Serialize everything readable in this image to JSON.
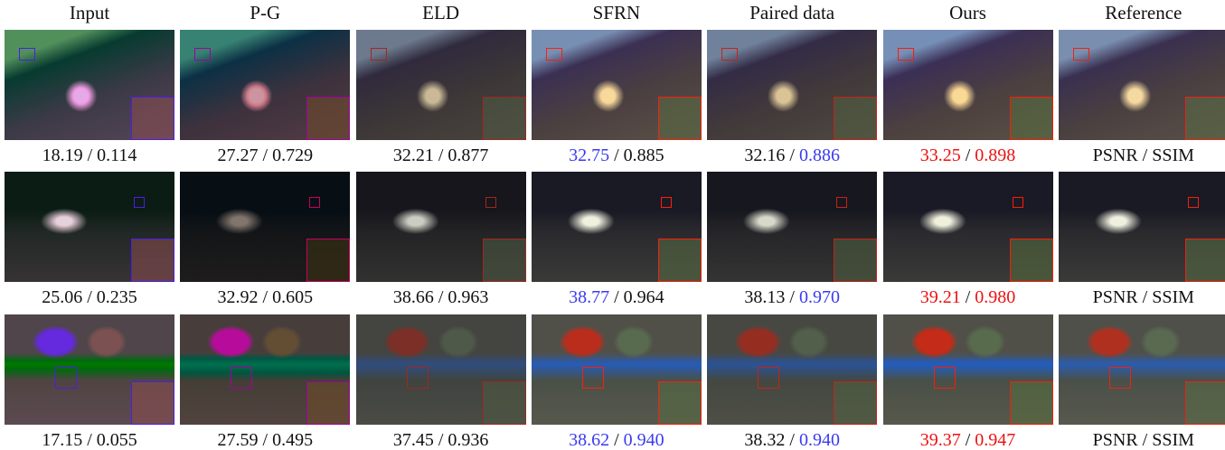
{
  "columns": [
    "Input",
    "P-G",
    "ELD",
    "SFRN",
    "Paired data",
    "Ours",
    "Reference"
  ],
  "separator": "/",
  "rows": [
    {
      "cells": [
        {
          "psnr": "18.19",
          "ssim": "0.114"
        },
        {
          "psnr": "27.27",
          "ssim": "0.729"
        },
        {
          "psnr": "32.21",
          "ssim": "0.877"
        },
        {
          "psnr": "32.75",
          "psnr_color": "#3a3af0",
          "ssim": "0.885"
        },
        {
          "psnr": "32.16",
          "ssim": "0.886",
          "ssim_color": "#3a3af0"
        },
        {
          "psnr": "33.25",
          "psnr_color": "#ee1111",
          "ssim": "0.898",
          "ssim_color": "#ee1111"
        },
        {
          "psnr": "PSNR",
          "ssim": "SSIM"
        }
      ]
    },
    {
      "cells": [
        {
          "psnr": "25.06",
          "ssim": "0.235"
        },
        {
          "psnr": "32.92",
          "ssim": "0.605"
        },
        {
          "psnr": "38.66",
          "ssim": "0.963"
        },
        {
          "psnr": "38.77",
          "psnr_color": "#3a3af0",
          "ssim": "0.964"
        },
        {
          "psnr": "38.13",
          "ssim": "0.970",
          "ssim_color": "#3a3af0"
        },
        {
          "psnr": "39.21",
          "psnr_color": "#ee1111",
          "ssim": "0.980",
          "ssim_color": "#ee1111"
        },
        {
          "psnr": "PSNR",
          "ssim": "SSIM"
        }
      ]
    },
    {
      "cells": [
        {
          "psnr": "17.15",
          "ssim": "0.055"
        },
        {
          "psnr": "27.59",
          "ssim": "0.495"
        },
        {
          "psnr": "37.45",
          "ssim": "0.936"
        },
        {
          "psnr": "38.62",
          "psnr_color": "#3a3af0",
          "ssim": "0.940",
          "ssim_color": "#3a3af0"
        },
        {
          "psnr": "38.32",
          "ssim": "0.940",
          "ssim_color": "#3a3af0"
        },
        {
          "psnr": "39.37",
          "psnr_color": "#ee1111",
          "ssim": "0.947",
          "ssim_color": "#ee1111"
        },
        {
          "psnr": "PSNR",
          "ssim": "SSIM"
        }
      ]
    }
  ]
}
